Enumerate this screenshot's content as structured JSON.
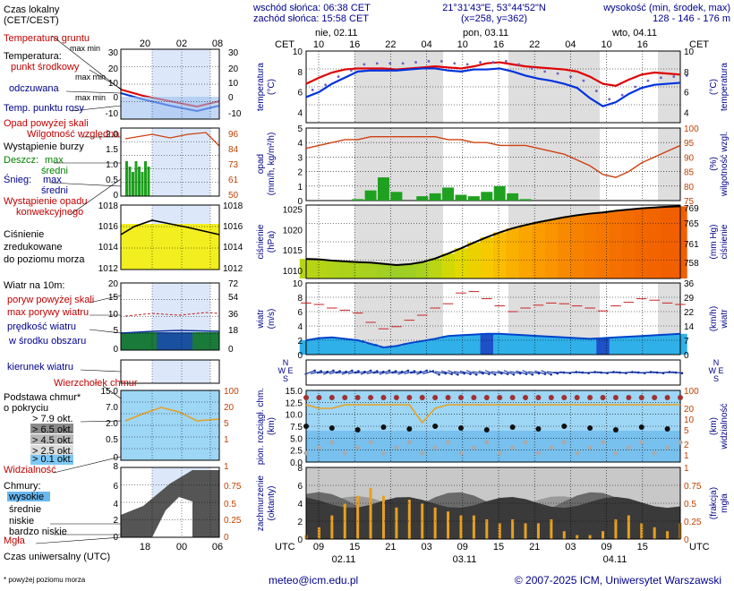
{
  "header": {
    "sunrise": "wschód słońca: 06:38 CET",
    "sunset": "zachód słońca: 15:58 CET",
    "coords": "21°31'43\"E, 53°44'52\"N",
    "grid": "(x=258, y=362)",
    "height_label": "wysokość (min, środek, max)",
    "height_values": "128 - 146 - 176 m"
  },
  "footer": {
    "email": "meteo@icm.edu.pl",
    "copyright": "© 2007-2025 ICM, Uniwersytet Warszawski",
    "note": "* powyżej poziomu morza",
    "utc_label": "Czas uniwersalny (UTC)"
  },
  "legend": {
    "local_time": "Czas lokalny",
    "local_time2": "(CET/CEST)",
    "ground_temp": "Temperatura gruntu",
    "ground_temp2": "max min",
    "temperature": "Temperatura:",
    "mid_point": "punkt środkowy",
    "max_min1": "max min",
    "felt": "odczuwana",
    "max_min2": "max min",
    "dew": "Temp. punktu rosy",
    "rain_over": "Opad powyżej skali",
    "humidity": "Wilgotność względna",
    "storm": "Wystąpienie burzy",
    "rain": "Deszcz:",
    "rain_max": "max",
    "rain_avg": "średni",
    "snow": "Śnieg:",
    "snow_max": "max",
    "snow_avg": "średni",
    "conv": "Wystąpienie opadu",
    "conv2": "konwekcyjnego",
    "pressure": "Ciśnienie",
    "pressure2": "zredukowane",
    "pressure3": "do poziomu morza",
    "wind": "Wiatr na 10m:",
    "gust_over": "poryw powyżej skali",
    "gust_max": "max porywy wiatru",
    "wind_speed": "prędkość wiatru",
    "wind_speed2": "w środku obszaru",
    "wind_dir": "kierunek wiatru",
    "cloud_top": "Wierzchołek chmur",
    "cloud_base": "Podstawa chmur*",
    "cloud_base2": "o pokryciu",
    "okt79": "> 7.9 okt.",
    "okt65": "> 6.5 okt.",
    "okt45": "> 4.5 okt.",
    "okt25": "> 2.5 okt.",
    "okt01": "> 0.1 okt.",
    "visibility": "Widzialność",
    "clouds": "Chmury:",
    "high": "wysokie",
    "mid": "średnie",
    "low": "niskie",
    "very_low": "bardzo niskie",
    "fog": "Mgła"
  },
  "labels": {
    "cet": "CET",
    "utc": "UTC",
    "temp_axis": "temperatura",
    "temp_unit": "(°C)",
    "rain_axis": "opad",
    "rain_unit": "(mm/h, kg/m²/h)",
    "hum_axis": "wilgotność wzgl.",
    "hum_unit": "(%)",
    "press_axis": "ciśnienie",
    "press_unit": "(hPa)",
    "press_unit2": "(mm Hg)",
    "wind_axis": "wiatr",
    "wind_unit": "(m/s)",
    "wind_unit2": "(km/h)",
    "cloud_axis": "pion. rozciągł. chm.",
    "cloud_unit": "(km)",
    "vis_axis": "widzialność",
    "vis_unit": "(km)",
    "cov_axis": "zachmurzenie",
    "cov_unit": "(oktanty)",
    "fog_axis": "mgła",
    "fog_unit": "(frakcja)",
    "compass": "N",
    "compass2": "W E",
    "compass3": "S"
  },
  "days": [
    {
      "label": "nie, 02.11",
      "utc": "02.11"
    },
    {
      "label": "pon, 03.11",
      "utc": "03.11"
    },
    {
      "label": "wto, 04.11",
      "utc": "04.11"
    }
  ],
  "cet_ticks": [
    "10",
    "16",
    "22",
    "04",
    "10",
    "16",
    "22",
    "04",
    "10",
    "16"
  ],
  "utc_ticks": [
    "09",
    "15",
    "21",
    "03",
    "09",
    "15",
    "21",
    "03",
    "09",
    "15"
  ],
  "small_cet_ticks": [
    "20",
    "02",
    "08"
  ],
  "small_utc_ticks": [
    "18",
    "00",
    "06"
  ],
  "colors": {
    "temp": "#e00000",
    "felt": "#0033dd",
    "humidity": "#d04010",
    "pressure_line": "#000000",
    "wind": "#0044cc",
    "gust": "#cc2222",
    "visibility": "#e8a020",
    "rain": "#20a020",
    "fog_bar": "#e8a020"
  },
  "chart_data": [
    {
      "type": "line",
      "title": "temperatura",
      "ylabel": "(°C)",
      "ylim": [
        3,
        10
      ],
      "ticks": [
        4,
        6,
        8,
        10
      ],
      "series": [
        {
          "name": "punkt środkowy",
          "values": [
            6.8,
            7.4,
            7.9,
            8.2,
            8.3,
            8.3,
            8.3,
            8.2,
            8.3,
            8.4,
            8.5,
            8.4,
            8.3,
            8.5,
            8.8,
            8.9,
            8.7,
            8.5,
            8.4,
            8.3,
            8.2,
            8.0,
            7.5,
            6.8,
            6.6,
            7.2,
            7.7,
            7.9,
            7.8,
            7.7
          ]
        },
        {
          "name": "odczuwana",
          "values": [
            5.5,
            6.0,
            6.8,
            7.4,
            8.0,
            8.1,
            8.1,
            8.1,
            8.2,
            8.3,
            8.3,
            8.1,
            8.0,
            8.2,
            8.2,
            8.3,
            8.0,
            7.6,
            7.3,
            7.1,
            6.8,
            6.4,
            5.4,
            4.6,
            5.0,
            5.8,
            6.4,
            6.7,
            6.8,
            6.9
          ]
        }
      ]
    },
    {
      "type": "bar",
      "title": "opad",
      "ylabel": "(mm/h, kg/m²/h)",
      "ylim": [
        0,
        5
      ],
      "ticks": [
        0,
        1,
        2,
        3,
        4,
        5
      ],
      "series": [
        {
          "name": "średni",
          "values": [
            0,
            0,
            0,
            0,
            0.1,
            0.7,
            1.6,
            0.6,
            0,
            0.3,
            0.5,
            0.9,
            0.4,
            0.3,
            0.6,
            1.0,
            0.5,
            0.1,
            0,
            0,
            0,
            0,
            0,
            0,
            0,
            0,
            0,
            0,
            0,
            0
          ]
        },
        {
          "name": "Wilgotność względna",
          "values": [
            93,
            94,
            95,
            96,
            96,
            97,
            97,
            97,
            97,
            97,
            97,
            96,
            96,
            95,
            95,
            94,
            94,
            94,
            93,
            92,
            91,
            89,
            87,
            84,
            83,
            85,
            88,
            90,
            92,
            94
          ]
        }
      ]
    },
    {
      "type": "area",
      "title": "ciśnienie",
      "ylabel": "(hPa)",
      "ylim": [
        1008,
        1026
      ],
      "ticks": [
        1010,
        1015,
        1020,
        1025
      ],
      "series": [
        {
          "name": "Ciśnienie",
          "values": [
            1012.8,
            1012.7,
            1012.4,
            1012.2,
            1012.0,
            1011.9,
            1011.6,
            1011.3,
            1011.5,
            1012.0,
            1012.9,
            1014.1,
            1015.4,
            1016.8,
            1018.1,
            1019.3,
            1020.3,
            1021.1,
            1021.8,
            1022.4,
            1023.0,
            1023.5,
            1023.9,
            1024.2,
            1024.6,
            1024.9,
            1025.2,
            1025.4,
            1025.6,
            1025.7
          ]
        }
      ]
    },
    {
      "type": "line",
      "title": "wiatr",
      "ylabel": "(m/s)",
      "ylim": [
        0,
        10
      ],
      "ticks": [
        0,
        2,
        4,
        6,
        8,
        10
      ],
      "series": [
        {
          "name": "prędkość wiatru",
          "values": [
            2.0,
            2.3,
            2.4,
            2.2,
            2.0,
            1.5,
            1.0,
            1.2,
            1.6,
            1.9,
            2.2,
            2.6,
            2.7,
            2.8,
            2.9,
            2.9,
            2.8,
            2.7,
            2.6,
            2.5,
            2.4,
            2.3,
            2.2,
            2.3,
            2.4,
            2.5,
            2.6,
            2.7,
            2.8,
            2.9
          ]
        },
        {
          "name": "max porywy wiatru",
          "values": [
            7.2,
            7.0,
            6.5,
            6.2,
            5.8,
            4.5,
            3.6,
            3.9,
            4.8,
            5.5,
            6.5,
            7.1,
            8.6,
            8.8,
            7.8,
            6.8,
            6.0,
            6.5,
            6.9,
            7.2,
            7.1,
            6.8,
            6.5,
            6.1,
            6.8,
            7.3,
            7.8,
            7.6,
            7.2,
            7.0
          ]
        }
      ]
    },
    {
      "type": "line",
      "title": "pion. rozciągł. chm.",
      "ylabel": "(km)",
      "ylim": [
        0,
        15
      ],
      "ticks": [
        0,
        2.5,
        5,
        7.5,
        10,
        12.5,
        15
      ],
      "series": [
        {
          "name": "Widzialność",
          "values": [
            10,
            9,
            9,
            10,
            10,
            10,
            10,
            10,
            10,
            5,
            9,
            10,
            10,
            10,
            10,
            10,
            10,
            10,
            10,
            10,
            10,
            10,
            10,
            10,
            10,
            10,
            10,
            10,
            10,
            10
          ]
        }
      ]
    },
    {
      "type": "bar",
      "title": "zachmurzenie",
      "ylabel": "(oktanty)",
      "ylim": [
        0,
        8
      ],
      "ticks": [
        0,
        2,
        4,
        6,
        8
      ],
      "series": [
        {
          "name": "Mgła",
          "values": [
            0.05,
            0.15,
            0.3,
            0.45,
            0.55,
            0.65,
            0.55,
            0.4,
            0.5,
            0.45,
            0.4,
            0.35,
            0.3,
            0.3,
            0.25,
            0.2,
            0.25,
            0.2,
            0.2,
            0.25,
            0.1,
            0.05,
            0.05,
            0.1,
            0.25,
            0.3,
            0.2,
            0.15,
            0.1,
            0.2
          ]
        }
      ]
    }
  ]
}
